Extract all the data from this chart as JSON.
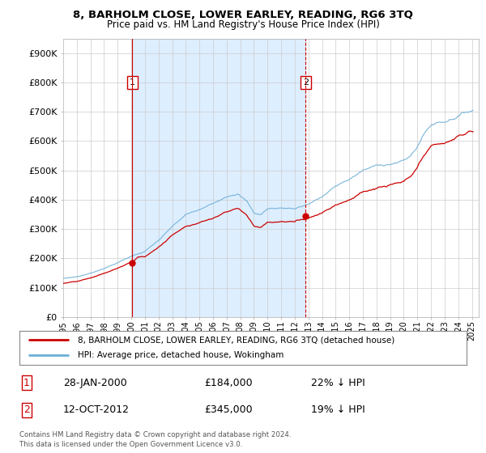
{
  "title": "8, BARHOLM CLOSE, LOWER EARLEY, READING, RG6 3TQ",
  "subtitle": "Price paid vs. HM Land Registry's House Price Index (HPI)",
  "ylim": [
    0,
    950000
  ],
  "yticks": [
    0,
    100000,
    200000,
    300000,
    400000,
    500000,
    600000,
    700000,
    800000,
    900000
  ],
  "ytick_labels": [
    "£0",
    "£100K",
    "£200K",
    "£300K",
    "£400K",
    "£500K",
    "£600K",
    "£700K",
    "£800K",
    "£900K"
  ],
  "hpi_color": "#6baed6",
  "price_color": "#cc0000",
  "vline1_color": "#cc0000",
  "vline2_color": "#cc0000",
  "shade_color": "#ddeeff",
  "marker1_date": 2000.08,
  "marker2_date": 2012.79,
  "marker1_price": 184000,
  "marker2_price": 345000,
  "legend_label1": "8, BARHOLM CLOSE, LOWER EARLEY, READING, RG6 3TQ (detached house)",
  "legend_label2": "HPI: Average price, detached house, Wokingham",
  "table_row1_num": "1",
  "table_row1_date": "28-JAN-2000",
  "table_row1_price": "£184,000",
  "table_row1_pct": "22% ↓ HPI",
  "table_row2_num": "2",
  "table_row2_date": "12-OCT-2012",
  "table_row2_price": "£345,000",
  "table_row2_pct": "19% ↓ HPI",
  "footer": "Contains HM Land Registry data © Crown copyright and database right 2024.\nThis data is licensed under the Open Government Licence v3.0.",
  "background_color": "#ffffff",
  "grid_color": "#cccccc",
  "xlim_start": 1995.0,
  "xlim_end": 2025.5
}
